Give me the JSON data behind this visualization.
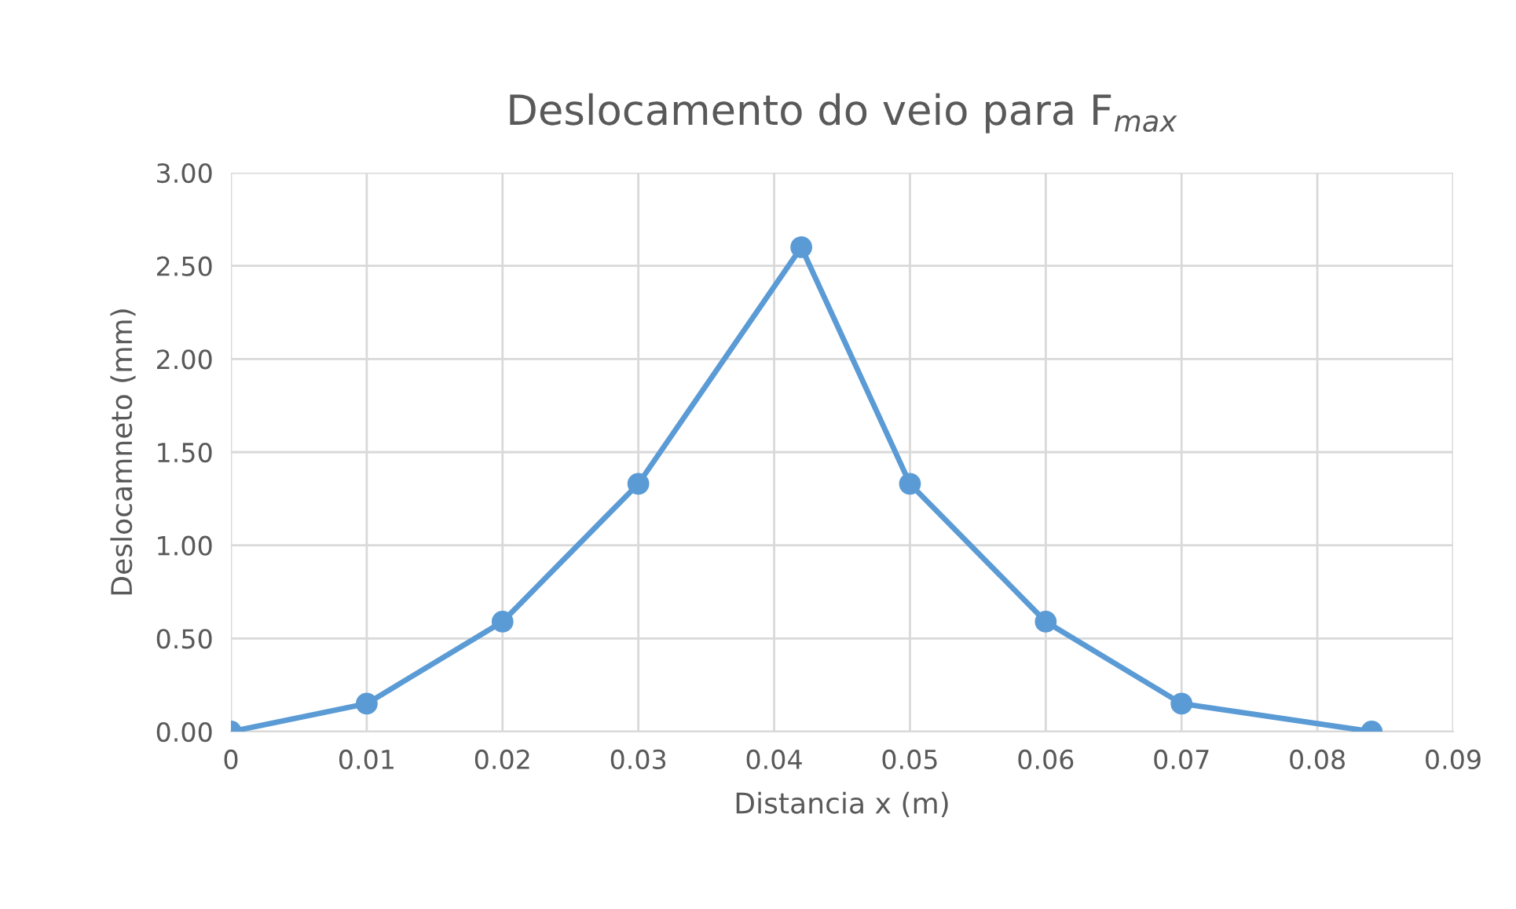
{
  "chart_data": {
    "type": "line",
    "title": "Deslocamento do veio para F$_{max}$",
    "xlabel": "Distancia x (m)",
    "ylabel": "Deslocamneto (mm)",
    "x": [
      0,
      0.01,
      0.02,
      0.03,
      0.042,
      0.05,
      0.06,
      0.07,
      0.084
    ],
    "series": [
      {
        "color": "#5b9bd5",
        "values": [
          0,
          0.15,
          0.59,
          1.33,
          2.6,
          1.33,
          0.59,
          0.15,
          0
        ]
      }
    ],
    "xlim": [
      0,
      0.09
    ],
    "xticks": [
      0,
      0.01,
      0.02,
      0.03,
      0.04,
      0.05,
      0.06,
      0.07,
      0.08,
      0.09
    ],
    "ylim": [
      0,
      3
    ],
    "yticks": [
      {
        "value": 0,
        "label": "0.00"
      },
      {
        "value": 0.5,
        "label": "0.50"
      },
      {
        "value": 1,
        "label": "1.00"
      },
      {
        "value": 1.5,
        "label": "1.50"
      },
      {
        "value": 2,
        "label": "2.00"
      },
      {
        "value": 2.5,
        "label": "2.50"
      },
      {
        "value": 3,
        "label": "3.00"
      }
    ],
    "grid": true,
    "marker": "circle",
    "line_style": "solid"
  }
}
